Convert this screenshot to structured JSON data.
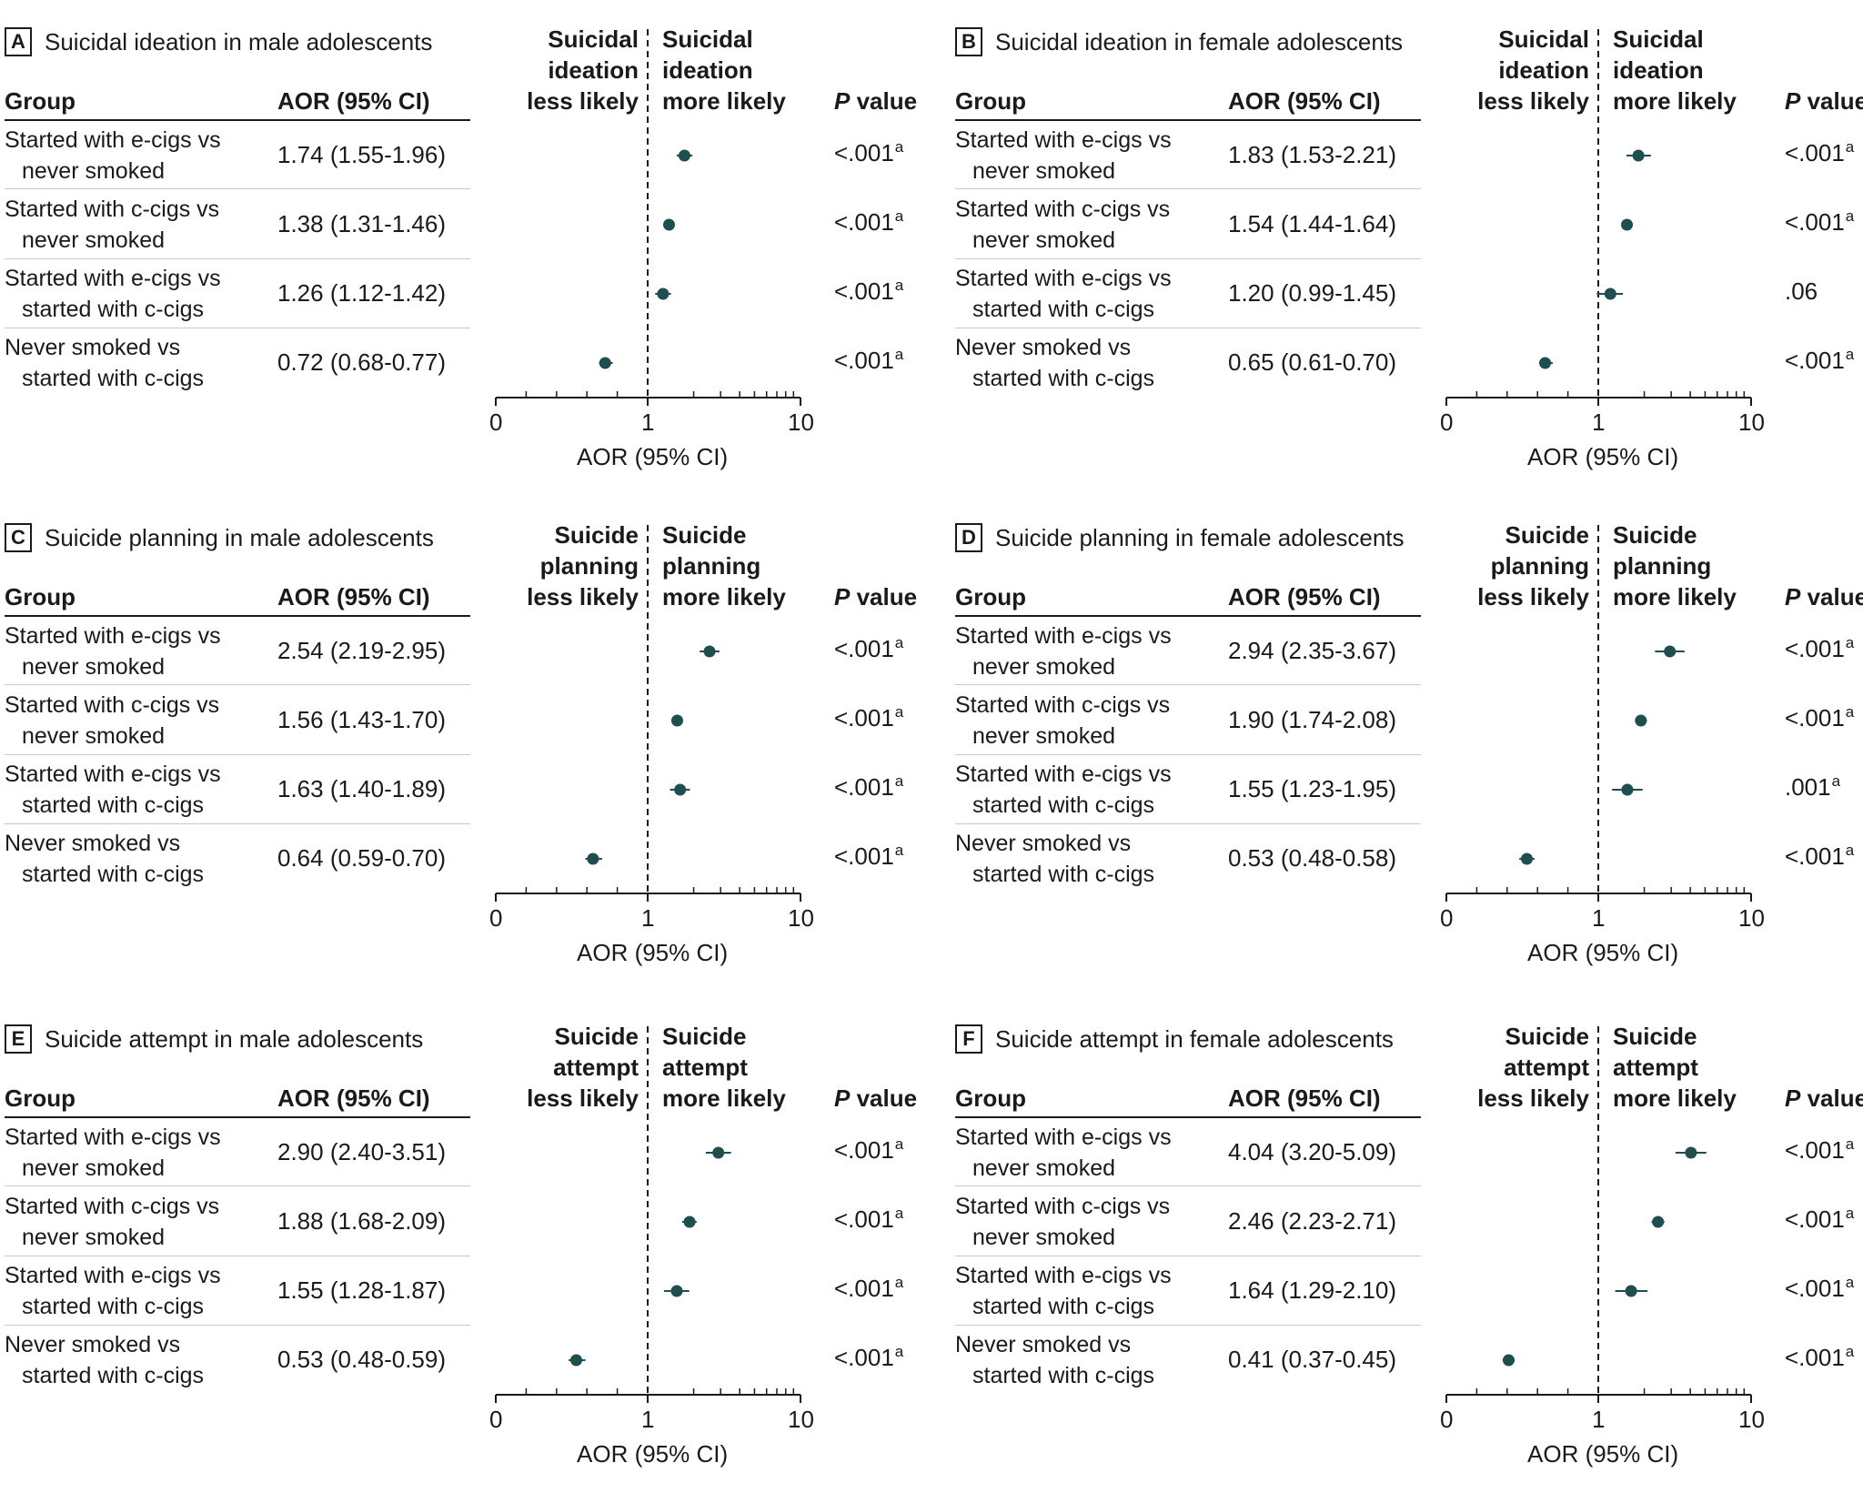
{
  "axis_ticks": [
    "0",
    "1",
    "10"
  ],
  "axis_title": "AOR (95% CI)",
  "headers": {
    "group": "Group",
    "aor": "AOR (95% CI)",
    "p_italic": "P",
    "p_rest": " value"
  },
  "colors": {
    "marker": "#1f4e4f",
    "text": "#1a1a1a",
    "rule": "#c8c8c8"
  },
  "chart_data": [
    {
      "type": "forest",
      "letter": "A",
      "title": "Suicidal ideation in male adolescents",
      "left_label": [
        "Suicidal",
        "ideation",
        "less likely"
      ],
      "right_label": [
        "Suicidal",
        "ideation",
        "more likely"
      ],
      "rows": [
        {
          "label1": "Started with e-cigs vs",
          "label2": "never smoked",
          "aor_text": "1.74 (1.55-1.96)",
          "aor": 1.74,
          "lo": 1.55,
          "hi": 1.96,
          "p": "<.001",
          "sup": "a"
        },
        {
          "label1": "Started with c-cigs vs",
          "label2": "never smoked",
          "aor_text": "1.38 (1.31-1.46)",
          "aor": 1.38,
          "lo": 1.31,
          "hi": 1.46,
          "p": "<.001",
          "sup": "a"
        },
        {
          "label1": "Started with e-cigs vs",
          "label2": "started with c-cigs",
          "aor_text": "1.26 (1.12-1.42)",
          "aor": 1.26,
          "lo": 1.12,
          "hi": 1.42,
          "p": "<.001",
          "sup": "a"
        },
        {
          "label1": "Never smoked vs",
          "label2": "started with c-cigs",
          "aor_text": "0.72 (0.68-0.77)",
          "aor": 0.72,
          "lo": 0.68,
          "hi": 0.77,
          "p": "<.001",
          "sup": "a"
        }
      ]
    },
    {
      "type": "forest",
      "letter": "B",
      "title": "Suicidal ideation in female adolescents",
      "left_label": [
        "Suicidal",
        "ideation",
        "less likely"
      ],
      "right_label": [
        "Suicidal",
        "ideation",
        "more likely"
      ],
      "rows": [
        {
          "label1": "Started with e-cigs vs",
          "label2": "never smoked",
          "aor_text": "1.83 (1.53-2.21)",
          "aor": 1.83,
          "lo": 1.53,
          "hi": 2.21,
          "p": "<.001",
          "sup": "a"
        },
        {
          "label1": "Started with c-cigs vs",
          "label2": "never smoked",
          "aor_text": "1.54 (1.44-1.64)",
          "aor": 1.54,
          "lo": 1.44,
          "hi": 1.64,
          "p": "<.001",
          "sup": "a"
        },
        {
          "label1": "Started with e-cigs vs",
          "label2": "started with c-cigs",
          "aor_text": "1.20 (0.99-1.45)",
          "aor": 1.2,
          "lo": 0.99,
          "hi": 1.45,
          "p": ".06",
          "sup": ""
        },
        {
          "label1": "Never smoked vs",
          "label2": "started with c-cigs",
          "aor_text": "0.65 (0.61-0.70)",
          "aor": 0.65,
          "lo": 0.61,
          "hi": 0.7,
          "p": "<.001",
          "sup": "a"
        }
      ]
    },
    {
      "type": "forest",
      "letter": "C",
      "title": "Suicide planning in male adolescents",
      "left_label": [
        "Suicide",
        "planning",
        "less likely"
      ],
      "right_label": [
        "Suicide",
        "planning",
        "more likely"
      ],
      "rows": [
        {
          "label1": "Started with e-cigs vs",
          "label2": "never smoked",
          "aor_text": "2.54 (2.19-2.95)",
          "aor": 2.54,
          "lo": 2.19,
          "hi": 2.95,
          "p": "<.001",
          "sup": "a"
        },
        {
          "label1": "Started with c-cigs vs",
          "label2": "never smoked",
          "aor_text": "1.56 (1.43-1.70)",
          "aor": 1.56,
          "lo": 1.43,
          "hi": 1.7,
          "p": "<.001",
          "sup": "a"
        },
        {
          "label1": "Started with e-cigs vs",
          "label2": "started with c-cigs",
          "aor_text": "1.63 (1.40-1.89)",
          "aor": 1.63,
          "lo": 1.4,
          "hi": 1.89,
          "p": "<.001",
          "sup": "a"
        },
        {
          "label1": "Never smoked vs",
          "label2": "started with c-cigs",
          "aor_text": "0.64 (0.59-0.70)",
          "aor": 0.64,
          "lo": 0.59,
          "hi": 0.7,
          "p": "<.001",
          "sup": "a"
        }
      ]
    },
    {
      "type": "forest",
      "letter": "D",
      "title": "Suicide planning in female adolescents",
      "left_label": [
        "Suicide",
        "planning",
        "less likely"
      ],
      "right_label": [
        "Suicide",
        "planning",
        "more likely"
      ],
      "rows": [
        {
          "label1": "Started with e-cigs vs",
          "label2": "never smoked",
          "aor_text": "2.94 (2.35-3.67)",
          "aor": 2.94,
          "lo": 2.35,
          "hi": 3.67,
          "p": "<.001",
          "sup": "a"
        },
        {
          "label1": "Started with c-cigs vs",
          "label2": "never smoked",
          "aor_text": "1.90 (1.74-2.08)",
          "aor": 1.9,
          "lo": 1.74,
          "hi": 2.08,
          "p": "<.001",
          "sup": "a"
        },
        {
          "label1": "Started with e-cigs vs",
          "label2": "started with c-cigs",
          "aor_text": "1.55 (1.23-1.95)",
          "aor": 1.55,
          "lo": 1.23,
          "hi": 1.95,
          "p": ".001",
          "sup": "a"
        },
        {
          "label1": "Never smoked vs",
          "label2": "started with c-cigs",
          "aor_text": "0.53 (0.48-0.58)",
          "aor": 0.53,
          "lo": 0.48,
          "hi": 0.58,
          "p": "<.001",
          "sup": "a"
        }
      ]
    },
    {
      "type": "forest",
      "letter": "E",
      "title": "Suicide attempt in male adolescents",
      "left_label": [
        "Suicide",
        "attempt",
        "less likely"
      ],
      "right_label": [
        "Suicide",
        "attempt",
        "more likely"
      ],
      "rows": [
        {
          "label1": "Started with e-cigs vs",
          "label2": "never smoked",
          "aor_text": "2.90 (2.40-3.51)",
          "aor": 2.9,
          "lo": 2.4,
          "hi": 3.51,
          "p": "<.001",
          "sup": "a"
        },
        {
          "label1": "Started with c-cigs vs",
          "label2": "never smoked",
          "aor_text": "1.88 (1.68-2.09)",
          "aor": 1.88,
          "lo": 1.68,
          "hi": 2.09,
          "p": "<.001",
          "sup": "a"
        },
        {
          "label1": "Started with e-cigs vs",
          "label2": "started with c-cigs",
          "aor_text": "1.55 (1.28-1.87)",
          "aor": 1.55,
          "lo": 1.28,
          "hi": 1.87,
          "p": "<.001",
          "sup": "a"
        },
        {
          "label1": "Never smoked vs",
          "label2": "started with c-cigs",
          "aor_text": "0.53 (0.48-0.59)",
          "aor": 0.53,
          "lo": 0.48,
          "hi": 0.59,
          "p": "<.001",
          "sup": "a"
        }
      ]
    },
    {
      "type": "forest",
      "letter": "F",
      "title": "Suicide attempt in female adolescents",
      "left_label": [
        "Suicide",
        "attempt",
        "less likely"
      ],
      "right_label": [
        "Suicide",
        "attempt",
        "more likely"
      ],
      "rows": [
        {
          "label1": "Started with e-cigs vs",
          "label2": "never smoked",
          "aor_text": "4.04 (3.20-5.09)",
          "aor": 4.04,
          "lo": 3.2,
          "hi": 5.09,
          "p": "<.001",
          "sup": "a"
        },
        {
          "label1": "Started with c-cigs vs",
          "label2": "never smoked",
          "aor_text": "2.46 (2.23-2.71)",
          "aor": 2.46,
          "lo": 2.23,
          "hi": 2.71,
          "p": "<.001",
          "sup": "a"
        },
        {
          "label1": "Started with e-cigs vs",
          "label2": "started with c-cigs",
          "aor_text": "1.64 (1.29-2.10)",
          "aor": 1.64,
          "lo": 1.29,
          "hi": 2.1,
          "p": "<.001",
          "sup": "a"
        },
        {
          "label1": "Never smoked vs",
          "label2": "started with c-cigs",
          "aor_text": "0.41 (0.37-0.45)",
          "aor": 0.41,
          "lo": 0.37,
          "hi": 0.45,
          "p": "<.001",
          "sup": "a"
        }
      ]
    }
  ]
}
